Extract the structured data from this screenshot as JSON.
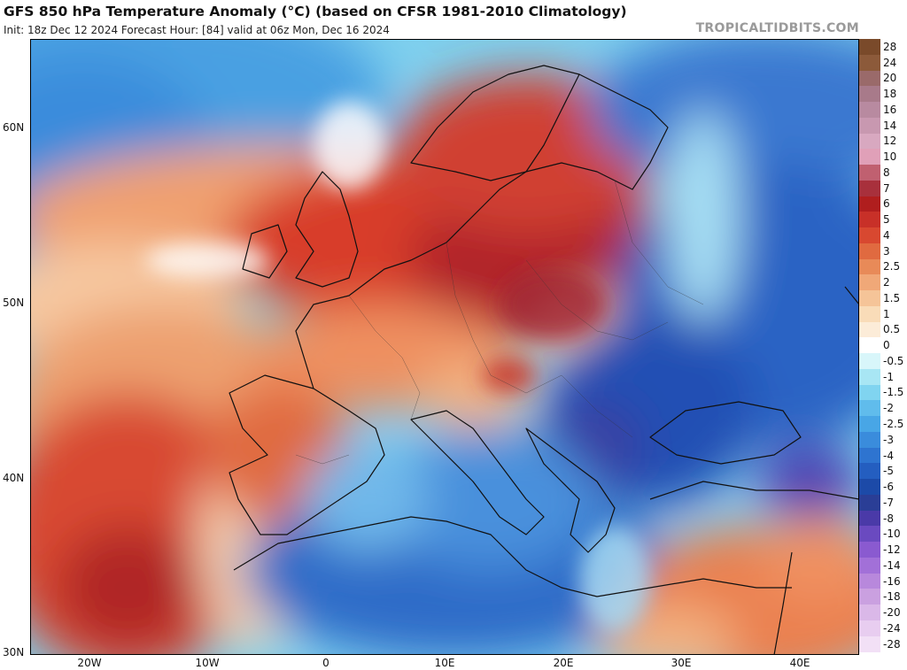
{
  "header": {
    "title": "GFS 850 hPa Temperature Anomaly (°C) (based on CFSR 1981-2010 Climatology)",
    "subtitle": "Init: 18z Dec 12 2024   Forecast Hour: [84]   valid at 06z Mon, Dec 16 2024",
    "watermark": "TROPICALTIDBITS.COM"
  },
  "map": {
    "lon_range": [
      -25,
      45
    ],
    "lat_range": [
      30,
      65
    ],
    "lat_labels": [
      "60N",
      "50N",
      "40N",
      "30N"
    ],
    "lon_labels": [
      "20W",
      "10W",
      "0",
      "10E",
      "20E",
      "30E",
      "40E"
    ]
  },
  "colorbar": {
    "labels": [
      "28",
      "24",
      "20",
      "18",
      "16",
      "14",
      "12",
      "10",
      "8",
      "7",
      "6",
      "5",
      "4",
      "3",
      "2.5",
      "2",
      "1.5",
      "1",
      "0.5",
      "0",
      "-0.5",
      "-1",
      "-1.5",
      "-2",
      "-2.5",
      "-3",
      "-4",
      "-5",
      "-6",
      "-7",
      "-8",
      "-10",
      "-12",
      "-14",
      "-16",
      "-18",
      "-20",
      "-24",
      "-28"
    ],
    "colors": [
      "#7a4a2a",
      "#8c5a3a",
      "#9a6a6a",
      "#a87a8a",
      "#b88aa0",
      "#c898b0",
      "#d8a8c0",
      "#e0a0b8",
      "#c06070",
      "#a8303c",
      "#b01e1e",
      "#c83028",
      "#d84830",
      "#e06a40",
      "#e88a58",
      "#f0a878",
      "#f5c498",
      "#f9dcb8",
      "#fcecd8",
      "#ffffff",
      "#d8f6fa",
      "#a8e6f4",
      "#80d4f0",
      "#60bcec",
      "#48a6e6",
      "#3a8cdc",
      "#2e74d0",
      "#245ec0",
      "#1c4aa8",
      "#2a3e96",
      "#4a3aa8",
      "#6a4ac0",
      "#8a5ad0",
      "#a270d8",
      "#b888dc",
      "#caa0e0",
      "#dab8e8",
      "#e8cdf0",
      "#f2e0f6"
    ]
  }
}
